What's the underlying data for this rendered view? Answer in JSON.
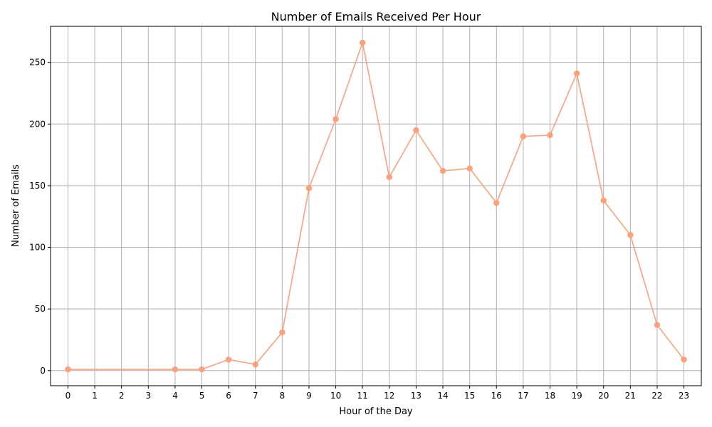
{
  "chart_data": {
    "type": "line",
    "title": "Number of Emails Received Per Hour",
    "xlabel": "Hour of the Day",
    "ylabel": "Number of Emails",
    "x": [
      0,
      4,
      5,
      6,
      7,
      8,
      9,
      10,
      11,
      12,
      13,
      14,
      15,
      16,
      17,
      18,
      19,
      20,
      21,
      22,
      23
    ],
    "values": [
      1,
      1,
      1,
      9,
      5,
      31,
      148,
      204,
      266,
      157,
      195,
      162,
      164,
      136,
      190,
      191,
      241,
      138,
      110,
      37,
      9
    ],
    "x_ticks": [
      "0",
      "1",
      "2",
      "3",
      "4",
      "5",
      "6",
      "7",
      "8",
      "9",
      "10",
      "11",
      "12",
      "13",
      "14",
      "15",
      "16",
      "17",
      "18",
      "19",
      "20",
      "21",
      "22",
      "23"
    ],
    "y_ticks": [
      "0",
      "50",
      "100",
      "150",
      "200",
      "250"
    ],
    "xlim": [
      -0.65,
      23.65
    ],
    "ylim": [
      -12.25,
      279.25
    ],
    "grid": true,
    "legend": "none",
    "line_color": "#FFA07A",
    "marker": "circle",
    "grid_color": "#b0b0b0"
  }
}
